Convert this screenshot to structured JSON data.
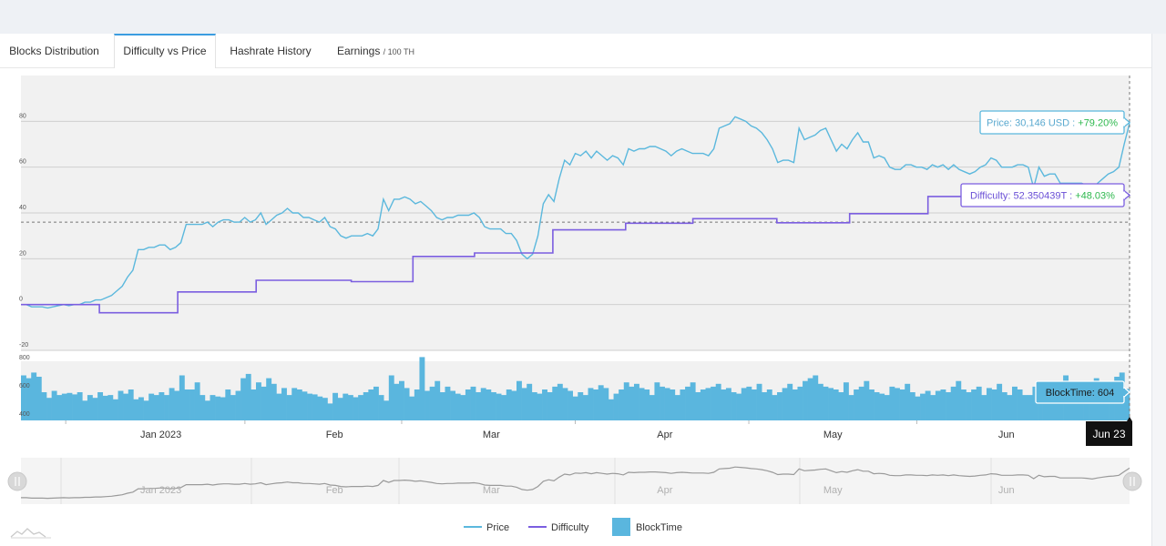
{
  "tabs": [
    {
      "label": "Blocks Distribution",
      "suffix": ""
    },
    {
      "label": "Difficulty vs Price",
      "suffix": ""
    },
    {
      "label": "Hashrate History",
      "suffix": ""
    },
    {
      "label": "Earnings",
      "suffix": "/ 100 TH"
    }
  ],
  "active_tab": 1,
  "colors": {
    "price": "#5bb8dd",
    "difficulty": "#7b5ee0",
    "blocktime": "#5ab6de",
    "positive": "#2db84d",
    "plot_bg": "#f1f1f1",
    "navigator_line": "#9a9a9a"
  },
  "chart_data": {
    "type": "line",
    "title": "Difficulty vs Price",
    "x_month_labels": [
      "Jan 2023",
      "Feb",
      "Mar",
      "Apr",
      "May",
      "Jun"
    ],
    "x_range": [
      "2022-12-07",
      "2023-06-23"
    ],
    "y_main": {
      "ticks": [
        80,
        60,
        40,
        20,
        0,
        -20
      ],
      "range": [
        -20,
        100
      ],
      "unit": "% change",
      "crosshair": 36
    },
    "y_blocktime": {
      "ticks": [
        800,
        600,
        400
      ],
      "range": [
        380,
        800
      ]
    },
    "series": [
      {
        "name": "Price",
        "kind": "line",
        "values": [
          0,
          0,
          -1,
          -1,
          -1,
          -1.5,
          -1,
          -0.5,
          0,
          -0.5,
          0,
          0,
          1,
          1,
          2,
          2,
          3,
          4,
          6,
          8,
          12,
          15,
          24,
          24,
          25,
          25,
          26,
          26,
          24,
          25,
          27,
          35,
          35,
          35,
          35,
          36,
          34,
          36,
          37,
          37,
          36,
          36,
          38,
          36,
          37,
          40,
          35,
          37,
          39,
          40,
          42,
          40,
          40,
          38,
          38,
          37,
          36,
          38,
          34,
          33,
          30,
          29,
          30,
          30,
          30,
          31,
          30,
          33,
          46,
          41,
          46,
          46,
          47,
          46,
          44,
          45,
          43,
          41,
          38,
          37,
          38,
          38,
          39,
          39,
          39,
          40,
          38,
          34,
          33,
          33,
          33,
          31,
          31,
          28,
          22,
          20,
          22,
          30,
          44,
          48,
          45,
          55,
          63,
          61,
          66,
          65,
          67,
          64,
          67,
          65,
          63,
          65,
          64,
          61,
          68,
          67,
          68,
          68,
          69,
          69,
          68,
          67,
          65,
          67,
          68,
          67,
          66,
          66,
          66,
          65,
          68,
          77,
          78,
          79,
          82,
          81,
          80,
          78,
          77,
          75,
          72,
          68,
          62,
          63,
          63,
          62,
          77,
          72,
          73,
          74,
          76,
          77,
          72,
          67,
          70,
          68,
          72,
          75,
          71,
          71,
          64,
          65,
          64,
          60,
          59,
          59,
          61,
          61,
          60,
          60,
          59,
          61,
          60,
          61,
          59,
          61,
          59,
          58,
          57,
          58,
          60,
          61,
          64,
          63,
          60,
          60,
          60,
          61,
          61,
          60,
          51,
          60,
          56,
          57,
          57,
          53,
          53,
          53,
          53,
          53,
          52,
          50,
          53,
          55,
          57,
          58,
          60,
          70,
          79.2
        ]
      },
      {
        "name": "Difficulty",
        "kind": "step",
        "segments": [
          {
            "from": "2022-12-07",
            "value": 0
          },
          {
            "from": "2022-12-21",
            "value": -3.6
          },
          {
            "from": "2023-01-04",
            "value": 5.5
          },
          {
            "from": "2023-01-18",
            "value": 10.6
          },
          {
            "from": "2023-02-04",
            "value": 10.0
          },
          {
            "from": "2023-02-15",
            "value": 21.0
          },
          {
            "from": "2023-02-26",
            "value": 22.5
          },
          {
            "from": "2023-03-12",
            "value": 32.6
          },
          {
            "from": "2023-03-25",
            "value": 35.5
          },
          {
            "from": "2023-04-06",
            "value": 37.5
          },
          {
            "from": "2023-04-21",
            "value": 35.7
          },
          {
            "from": "2023-05-04",
            "value": 39.7
          },
          {
            "from": "2023-05-18",
            "value": 47.2
          },
          {
            "from": "2023-06-07",
            "value": 48.03
          }
        ]
      },
      {
        "name": "BlockTime",
        "kind": "bar",
        "values": [
          700,
          680,
          720,
          690,
          580,
          540,
          590,
          560,
          570,
          575,
          565,
          580,
          520,
          560,
          540,
          580,
          555,
          560,
          530,
          590,
          570,
          600,
          530,
          545,
          520,
          570,
          560,
          580,
          560,
          610,
          590,
          700,
          600,
          600,
          650,
          560,
          520,
          560,
          550,
          545,
          600,
          560,
          590,
          680,
          710,
          600,
          650,
          620,
          680,
          640,
          570,
          610,
          560,
          610,
          600,
          585,
          570,
          565,
          550,
          540,
          500,
          575,
          540,
          570,
          560,
          545,
          560,
          580,
          600,
          620,
          560,
          520,
          700,
          640,
          660,
          610,
          550,
          600,
          830,
          590,
          620,
          660,
          580,
          620,
          590,
          570,
          560,
          600,
          620,
          580,
          610,
          600,
          580,
          570,
          560,
          600,
          590,
          660,
          610,
          640,
          580,
          570,
          600,
          580,
          620,
          640,
          610,
          590,
          550,
          580,
          560,
          610,
          600,
          630,
          610,
          530,
          570,
          600,
          650,
          620,
          640,
          610,
          600,
          560,
          650,
          620,
          610,
          600,
          560,
          600,
          620,
          650,
          580,
          600,
          610,
          620,
          640,
          600,
          610,
          580,
          570,
          610,
          620,
          600,
          640,
          580,
          600,
          560,
          580,
          610,
          640,
          600,
          620,
          660,
          680,
          700,
          640,
          620,
          610,
          600,
          580,
          650,
          560,
          600,
          620,
          660,
          600,
          580,
          570,
          560,
          620,
          610,
          600,
          640,
          580,
          550,
          570,
          590,
          560,
          590,
          600,
          580,
          620,
          660,
          600,
          580,
          600,
          620,
          560,
          610,
          600,
          640,
          580,
          560,
          620,
          600,
          560,
          560,
          620,
          640,
          590,
          600,
          620,
          660,
          700,
          560,
          590,
          580,
          610,
          630,
          680,
          640,
          650,
          660,
          690,
          720,
          604
        ]
      }
    ],
    "tooltips": {
      "price": {
        "label": "Price",
        "value": "30,146 USD",
        "change": "+79.20%"
      },
      "difficulty": {
        "label": "Difficulty",
        "value": "52.350439T",
        "change": "+48.03%"
      },
      "blocktime": {
        "label": "BlockTime",
        "value": "604"
      }
    },
    "crosshair_date": "Jun 23",
    "legend": [
      "Price",
      "Difficulty",
      "BlockTime"
    ],
    "legend_position": "bottom-center"
  }
}
